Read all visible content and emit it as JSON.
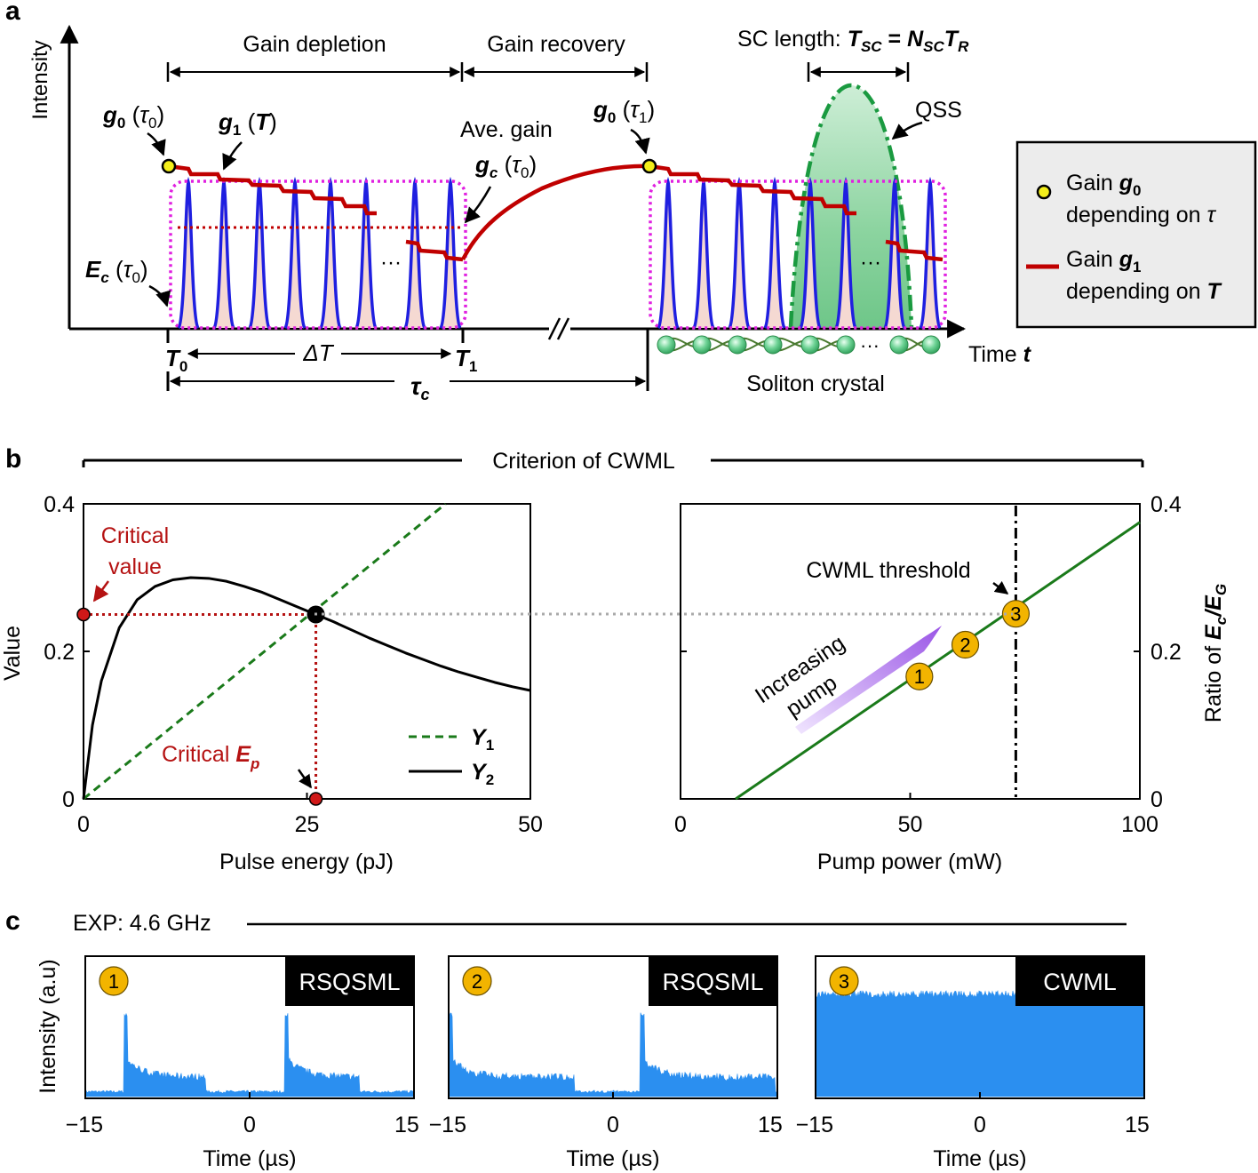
{
  "chart_data": [
    {
      "panel": "a",
      "type": "diagram",
      "title": "",
      "ylabel": "Intensity",
      "xlabel": "Time t",
      "annotations": {
        "gain_depletion": "Gain depletion",
        "gain_recovery": "Gain recovery",
        "sc_length_label": "SC length:",
        "sc_length_formula": "T_SC = N_SC T_R",
        "qss": "QSS",
        "ave_gain": "Ave. gain",
        "g0_tau0": "g0 (τ0)",
        "g1_T": "g1 (T)",
        "gc_tau0": "gc (τ0)",
        "g0_tau1": "g0 (τ1)",
        "Ec_tau0": "Ec (τ0)",
        "T0": "T0",
        "T1": "T1",
        "delta_T": "ΔT",
        "tau_c": "τc",
        "soliton_crystal": "Soliton crystal",
        "ellipsis": "···"
      },
      "legend": [
        {
          "marker": "yellow-dot",
          "line1": "Gain g0",
          "line2": "depending on τ"
        },
        {
          "marker": "red-line",
          "line1": "Gain g1",
          "line2": "depending on T"
        }
      ]
    },
    {
      "panel": "b-left",
      "type": "line",
      "section_title": "Criterion of CWML",
      "xlabel": "Pulse energy (pJ)",
      "ylabel": "Value",
      "xlim": [
        0,
        50
      ],
      "ylim": [
        0,
        0.4
      ],
      "xticks": [
        0,
        25,
        50
      ],
      "yticks": [
        0,
        0.2,
        0.4
      ],
      "xticklabels": [
        "0",
        "25",
        "50"
      ],
      "yticklabels": [
        "0",
        "0.2",
        "0.4"
      ],
      "series": [
        {
          "name": "Y1",
          "style": "dashed",
          "color": "#1a7a1a",
          "x": [
            0,
            40.5
          ],
          "y": [
            0,
            0.4
          ]
        },
        {
          "name": "Y2",
          "style": "solid",
          "color": "#000000",
          "x": [
            0,
            1,
            2,
            4,
            6,
            8,
            10,
            12,
            14,
            16,
            18,
            20,
            22,
            24,
            26,
            28,
            30,
            32,
            34,
            36,
            38,
            40,
            42,
            44,
            46,
            48,
            50
          ],
          "y": [
            0,
            0.1,
            0.16,
            0.232,
            0.27,
            0.288,
            0.297,
            0.3,
            0.299,
            0.295,
            0.288,
            0.28,
            0.27,
            0.26,
            0.25,
            0.24,
            0.229,
            0.218,
            0.208,
            0.198,
            0.189,
            0.18,
            0.172,
            0.165,
            0.158,
            0.152,
            0.147
          ]
        }
      ],
      "critical_point": {
        "x": 26,
        "y": 0.25
      },
      "annotations": {
        "critical_value": [
          "Critical",
          "value"
        ],
        "critical_ep": "Critical",
        "critical_ep_sym": "Ep"
      }
    },
    {
      "panel": "b-right",
      "type": "line",
      "xlabel": "Pump power (mW)",
      "ylabel": "Ratio of Ec/EG",
      "xlim": [
        0,
        100
      ],
      "ylim": [
        0,
        0.4
      ],
      "xticks": [
        0,
        50,
        100
      ],
      "yticks": [
        0,
        0.2,
        0.4
      ],
      "xticklabels": [
        "0",
        "50",
        "100"
      ],
      "yticklabels": [
        "0",
        "0.2",
        "0.4"
      ],
      "series": [
        {
          "name": "ratio",
          "style": "solid",
          "color": "#1a7a1a",
          "x": [
            12,
            100
          ],
          "y": [
            0,
            0.375
          ]
        }
      ],
      "threshold_x": 73,
      "threshold_label": "CWML threshold",
      "pump_label": [
        "Increasing",
        "pump"
      ],
      "points": [
        {
          "label": "1",
          "x": 52,
          "y": 0.166
        },
        {
          "label": "2",
          "x": 62,
          "y": 0.209
        },
        {
          "label": "3",
          "x": 73,
          "y": 0.251
        }
      ]
    },
    {
      "panel": "c",
      "type": "area",
      "section_title": "EXP: 4.6 GHz",
      "ylabel": "Intensity (a.u)",
      "xlabel": "Time (µs)",
      "xlim": [
        -15,
        15
      ],
      "xticks": [
        -15,
        0,
        15
      ],
      "xticklabels": [
        "−15",
        "0",
        "15"
      ],
      "color": "#2b8ff0",
      "subplots": [
        {
          "badge": "1",
          "tag": "RSQSML",
          "events": [
            {
              "start": -11.5,
              "end": -4
            },
            {
              "start": 3.2,
              "end": 10
            }
          ]
        },
        {
          "badge": "2",
          "tag": "RSQSML",
          "events": [
            {
              "start": -15,
              "end": -3.5
            },
            {
              "start": 2.5,
              "end": 14.8
            }
          ]
        },
        {
          "badge": "3",
          "tag": "CWML",
          "level": 0.72
        }
      ]
    }
  ],
  "colors": {
    "pulse": "#1f1fe0",
    "pulse_fill": "#f5d9d2",
    "gain_line": "#c00000",
    "envelope": "#e020e0",
    "qss_fill": "#7fcf95",
    "qss_edge": "#1a9a40",
    "soliton": "#3fb86a",
    "badge": "#f2b400",
    "critical": "#b51212",
    "legend_bg": "#ececec",
    "pump_arrow": "#9a55e6",
    "grey_dots": "#aaaaaa",
    "exp_fill": "#2b8ff0"
  }
}
